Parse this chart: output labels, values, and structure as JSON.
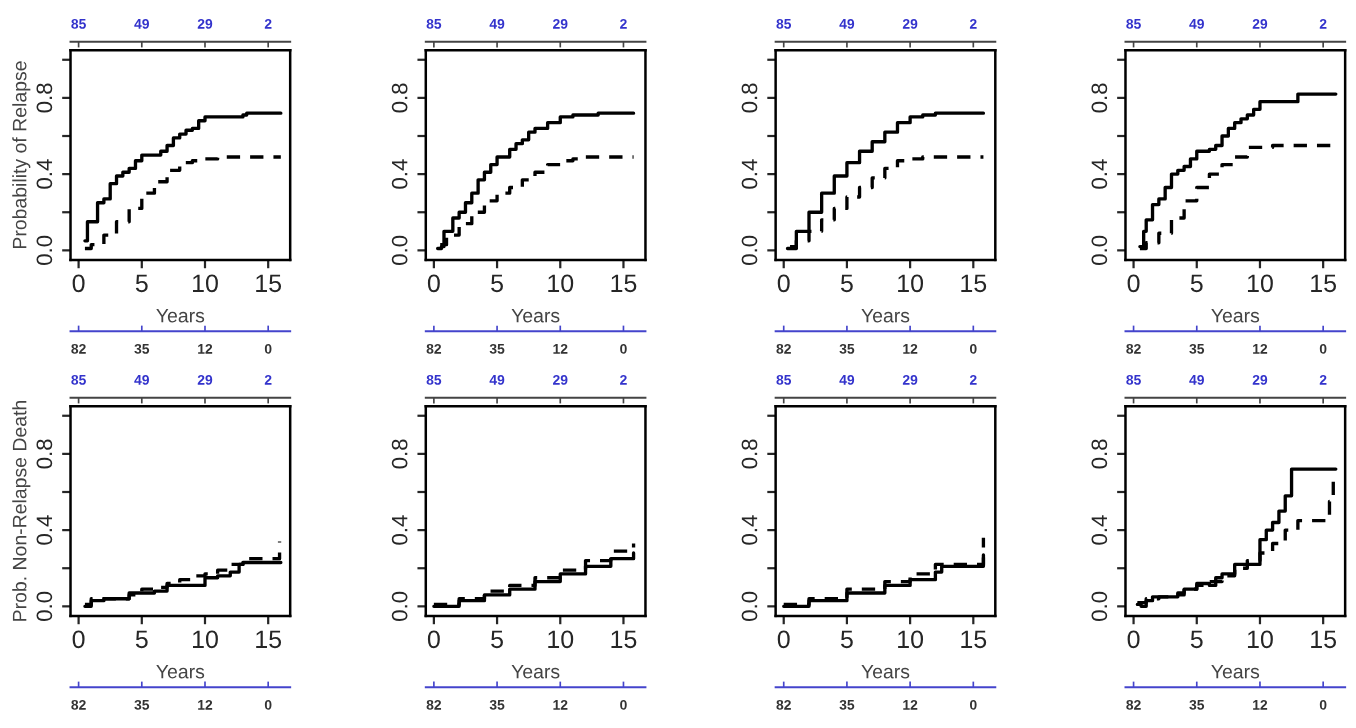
{
  "chart_data": [
    {
      "type": "step",
      "ylabel": "Probability of Relapse",
      "xlabel": "Years",
      "xlim": [
        -0.64,
        16.74
      ],
      "xticks": [
        0,
        5,
        10,
        15
      ],
      "ylim": [
        -0.05,
        1.05
      ],
      "yticks": [
        {
          "value": 0,
          "label": "0.0"
        },
        {
          "value": 0.2,
          "label": null
        },
        {
          "value": 0.4,
          "label": "0.4"
        },
        {
          "value": 0.6,
          "label": null
        },
        {
          "value": 0.8,
          "label": "0.8"
        },
        {
          "value": 1.0,
          "label": null
        }
      ],
      "annotations": [
        "85",
        "49",
        "29",
        "2",
        "82",
        "35",
        "12",
        "0"
      ],
      "series": [
        {
          "color": "#000000",
          "line_style": "solid",
          "x": [
            0.5,
            0.7,
            1.5,
            2,
            2.5,
            3,
            3.5,
            4,
            4.5,
            5,
            6,
            6.5,
            7,
            7.5,
            8,
            8.5,
            9,
            9.5,
            10,
            13,
            13.3,
            16
          ],
          "values": [
            0.05,
            0.15,
            0.25,
            0.27,
            0.35,
            0.39,
            0.41,
            0.43,
            0.47,
            0.5,
            0.5,
            0.52,
            0.55,
            0.59,
            0.61,
            0.63,
            0.64,
            0.68,
            0.7,
            0.71,
            0.72,
            0.72
          ]
        },
        {
          "color": "#000000",
          "line_style": "dashed",
          "x": [
            0.5,
            1,
            2,
            3,
            4,
            5,
            6,
            7,
            8,
            9,
            10,
            11,
            16
          ],
          "values": [
            0.01,
            0.03,
            0.08,
            0.15,
            0.22,
            0.3,
            0.36,
            0.42,
            0.46,
            0.47,
            0.48,
            0.49,
            0.49
          ]
        }
      ]
    },
    {
      "type": "step",
      "xlabel": "Years",
      "xlim": [
        -0.64,
        16.74
      ],
      "xticks": [
        0,
        5,
        10,
        15
      ],
      "ylim": [
        -0.05,
        1.05
      ],
      "yticks": [
        {
          "value": 0,
          "label": "0.0"
        },
        {
          "value": 0.2,
          "label": null
        },
        {
          "value": 0.4,
          "label": "0.4"
        },
        {
          "value": 0.6,
          "label": null
        },
        {
          "value": 0.8,
          "label": "0.8"
        },
        {
          "value": 1.0,
          "label": null
        }
      ],
      "annotations": [
        "85",
        "49",
        "29",
        "2",
        "82",
        "35",
        "12",
        "0"
      ],
      "series": [
        {
          "color": "#000000",
          "line_style": "solid",
          "x": [
            0.3,
            0.6,
            0.8,
            1.5,
            2,
            2.5,
            3,
            3.5,
            4,
            4.5,
            5,
            6,
            6.5,
            7,
            7.5,
            8,
            9,
            10,
            11,
            13,
            15.8
          ],
          "values": [
            0.01,
            0.02,
            0.1,
            0.17,
            0.2,
            0.25,
            0.3,
            0.37,
            0.41,
            0.45,
            0.49,
            0.53,
            0.56,
            0.58,
            0.62,
            0.64,
            0.67,
            0.7,
            0.71,
            0.72,
            0.72
          ]
        },
        {
          "color": "#000000",
          "line_style": "dashed",
          "x": [
            0.5,
            1,
            2,
            3,
            4,
            5,
            6,
            7,
            8,
            9,
            10,
            11,
            12,
            15.8
          ],
          "values": [
            0.03,
            0.08,
            0.14,
            0.2,
            0.26,
            0.3,
            0.33,
            0.37,
            0.41,
            0.45,
            0.47,
            0.48,
            0.49,
            0.49
          ]
        }
      ]
    },
    {
      "type": "step",
      "xlabel": "Years",
      "xlim": [
        -0.64,
        16.74
      ],
      "xticks": [
        0,
        5,
        10,
        15
      ],
      "ylim": [
        -0.05,
        1.05
      ],
      "yticks": [
        {
          "value": 0,
          "label": "0.0"
        },
        {
          "value": 0.2,
          "label": null
        },
        {
          "value": 0.4,
          "label": "0.4"
        },
        {
          "value": 0.6,
          "label": null
        },
        {
          "value": 0.8,
          "label": "0.8"
        },
        {
          "value": 1.0,
          "label": null
        }
      ],
      "annotations": [
        "85",
        "49",
        "29",
        "2",
        "82",
        "35",
        "12",
        "0"
      ],
      "series": [
        {
          "color": "#000000",
          "line_style": "solid",
          "x": [
            0.3,
            1,
            2,
            3,
            4,
            5,
            6,
            7,
            8,
            9,
            10,
            11,
            12,
            15.8
          ],
          "values": [
            0.01,
            0.1,
            0.2,
            0.3,
            0.39,
            0.46,
            0.52,
            0.57,
            0.62,
            0.67,
            0.7,
            0.71,
            0.72,
            0.72
          ]
        },
        {
          "color": "#000000",
          "line_style": "dashed",
          "x": [
            0.5,
            1,
            2,
            3,
            4,
            5,
            6,
            7,
            8,
            9,
            10,
            11,
            15.8
          ],
          "values": [
            0.02,
            0.05,
            0.1,
            0.16,
            0.22,
            0.28,
            0.33,
            0.38,
            0.43,
            0.47,
            0.48,
            0.49,
            0.49
          ]
        }
      ]
    },
    {
      "type": "step",
      "xlabel": "Years",
      "xlim": [
        -0.64,
        16.74
      ],
      "xticks": [
        0,
        5,
        10,
        15
      ],
      "ylim": [
        -0.05,
        1.05
      ],
      "yticks": [
        {
          "value": 0,
          "label": "0.0"
        },
        {
          "value": 0.2,
          "label": null
        },
        {
          "value": 0.4,
          "label": "0.4"
        },
        {
          "value": 0.6,
          "label": null
        },
        {
          "value": 0.8,
          "label": "0.8"
        },
        {
          "value": 1.0,
          "label": null
        }
      ],
      "annotations": [
        "85",
        "49",
        "29",
        "2",
        "82",
        "35",
        "12",
        "0"
      ],
      "series": [
        {
          "color": "#000000",
          "line_style": "solid",
          "x": [
            0.5,
            0.8,
            1,
            1.5,
            2,
            2.5,
            3,
            3.5,
            4,
            4.5,
            5,
            6,
            6.5,
            7,
            7.5,
            8,
            8.5,
            9,
            9.5,
            10,
            12.7,
            13,
            16
          ],
          "values": [
            0.02,
            0.1,
            0.16,
            0.24,
            0.27,
            0.33,
            0.4,
            0.42,
            0.44,
            0.48,
            0.52,
            0.53,
            0.55,
            0.6,
            0.64,
            0.67,
            0.69,
            0.71,
            0.74,
            0.78,
            0.78,
            0.82,
            0.82
          ]
        },
        {
          "color": "#000000",
          "line_style": "dashed",
          "x": [
            0.5,
            1,
            2,
            3,
            4,
            5,
            6,
            7,
            8,
            9,
            10,
            11,
            16
          ],
          "values": [
            0.01,
            0.04,
            0.09,
            0.17,
            0.26,
            0.33,
            0.4,
            0.45,
            0.49,
            0.54,
            0.54,
            0.55,
            0.55
          ]
        }
      ]
    },
    {
      "type": "step",
      "ylabel": "Prob. Non-Relapse Death",
      "xlabel": "Years",
      "xlim": [
        -0.64,
        16.74
      ],
      "xticks": [
        0,
        5,
        10,
        15
      ],
      "ylim": [
        -0.05,
        1.05
      ],
      "yticks": [
        {
          "value": 0,
          "label": "0.0"
        },
        {
          "value": 0.2,
          "label": null
        },
        {
          "value": 0.4,
          "label": "0.4"
        },
        {
          "value": 0.6,
          "label": null
        },
        {
          "value": 0.8,
          "label": "0.8"
        },
        {
          "value": 1.0,
          "label": null
        }
      ],
      "annotations": [
        "85",
        "49",
        "29",
        "2",
        "82",
        "35",
        "12",
        "0"
      ],
      "series": [
        {
          "color": "#000000",
          "line_style": "solid",
          "x": [
            0.5,
            1,
            2,
            3.5,
            4,
            6,
            7,
            9.5,
            10,
            11,
            12,
            12.7,
            13,
            16
          ],
          "values": [
            0.0,
            0.03,
            0.04,
            0.04,
            0.07,
            0.08,
            0.11,
            0.11,
            0.15,
            0.16,
            0.18,
            0.22,
            0.23,
            0.23
          ]
        },
        {
          "color": "#000000",
          "line_style": "dashed",
          "x": [
            0.5,
            1,
            2,
            4,
            5,
            6,
            7,
            8,
            9,
            10,
            11,
            12,
            13,
            15.7,
            15.9
          ],
          "values": [
            0.01,
            0.04,
            0.04,
            0.06,
            0.09,
            0.1,
            0.12,
            0.14,
            0.16,
            0.17,
            0.19,
            0.22,
            0.25,
            0.25,
            0.34
          ]
        }
      ]
    },
    {
      "type": "step",
      "xlabel": "Years",
      "xlim": [
        -0.64,
        16.74
      ],
      "xticks": [
        0,
        5,
        10,
        15
      ],
      "ylim": [
        -0.05,
        1.05
      ],
      "yticks": [
        {
          "value": 0,
          "label": "0.0"
        },
        {
          "value": 0.2,
          "label": null
        },
        {
          "value": 0.4,
          "label": "0.4"
        },
        {
          "value": 0.6,
          "label": null
        },
        {
          "value": 0.8,
          "label": "0.8"
        },
        {
          "value": 1.0,
          "label": null
        }
      ],
      "annotations": [
        "85",
        "49",
        "29",
        "2",
        "82",
        "35",
        "12",
        "0"
      ],
      "series": [
        {
          "color": "#000000",
          "line_style": "solid",
          "x": [
            0,
            2,
            4,
            6,
            8,
            10,
            12,
            14,
            15.8
          ],
          "values": [
            0.0,
            0.03,
            0.06,
            0.09,
            0.13,
            0.17,
            0.21,
            0.25,
            0.28
          ]
        },
        {
          "color": "#000000",
          "line_style": "dashed",
          "x": [
            0,
            2,
            4,
            6,
            8,
            10,
            12,
            14,
            15.8
          ],
          "values": [
            0.01,
            0.04,
            0.08,
            0.11,
            0.15,
            0.19,
            0.24,
            0.29,
            0.33
          ]
        }
      ]
    },
    {
      "type": "step",
      "xlabel": "Years",
      "xlim": [
        -0.64,
        16.74
      ],
      "xticks": [
        0,
        5,
        10,
        15
      ],
      "ylim": [
        -0.05,
        1.05
      ],
      "yticks": [
        {
          "value": 0,
          "label": "0.0"
        },
        {
          "value": 0.2,
          "label": null
        },
        {
          "value": 0.4,
          "label": "0.4"
        },
        {
          "value": 0.6,
          "label": null
        },
        {
          "value": 0.8,
          "label": "0.8"
        },
        {
          "value": 1.0,
          "label": null
        }
      ],
      "annotations": [
        "85",
        "49",
        "29",
        "2",
        "82",
        "35",
        "12",
        "0"
      ],
      "series": [
        {
          "color": "#000000",
          "line_style": "solid",
          "x": [
            0,
            2,
            5,
            8,
            10,
            12,
            12.5,
            15.8
          ],
          "values": [
            0.0,
            0.03,
            0.07,
            0.11,
            0.14,
            0.18,
            0.21,
            0.27
          ]
        },
        {
          "color": "#000000",
          "line_style": "dashed",
          "x": [
            0,
            2,
            5,
            8,
            10,
            12,
            15.8
          ],
          "values": [
            0.01,
            0.04,
            0.09,
            0.13,
            0.17,
            0.22,
            0.36
          ]
        }
      ]
    },
    {
      "type": "step",
      "xlabel": "Years",
      "xlim": [
        -0.64,
        16.74
      ],
      "xticks": [
        0,
        5,
        10,
        15
      ],
      "ylim": [
        -0.05,
        1.05
      ],
      "yticks": [
        {
          "value": 0,
          "label": "0.0"
        },
        {
          "value": 0.2,
          "label": null
        },
        {
          "value": 0.4,
          "label": "0.4"
        },
        {
          "value": 0.6,
          "label": null
        },
        {
          "value": 0.8,
          "label": "0.8"
        },
        {
          "value": 1.0,
          "label": null
        }
      ],
      "annotations": [
        "85",
        "49",
        "29",
        "2",
        "82",
        "35",
        "12",
        "0"
      ],
      "series": [
        {
          "color": "#000000",
          "line_style": "solid",
          "x": [
            0.3,
            0.6,
            1,
            1.5,
            3,
            3.5,
            4,
            5,
            6,
            6.5,
            7,
            8,
            9.5,
            10,
            10.5,
            11,
            11.5,
            12,
            12.5,
            16
          ],
          "values": [
            0.01,
            0.0,
            0.03,
            0.05,
            0.05,
            0.07,
            0.09,
            0.12,
            0.11,
            0.15,
            0.17,
            0.22,
            0.22,
            0.35,
            0.4,
            0.44,
            0.5,
            0.58,
            0.72,
            0.72
          ]
        },
        {
          "color": "#000000",
          "line_style": "dashed",
          "x": [
            0.3,
            1,
            2,
            3,
            4,
            5,
            6,
            7,
            8,
            9,
            10,
            11,
            12,
            13,
            15.2,
            15.5,
            15.8
          ],
          "values": [
            0.02,
            0.04,
            0.05,
            0.06,
            0.09,
            0.11,
            0.13,
            0.16,
            0.2,
            0.24,
            0.28,
            0.33,
            0.4,
            0.45,
            0.45,
            0.55,
            0.68
          ]
        }
      ]
    }
  ]
}
